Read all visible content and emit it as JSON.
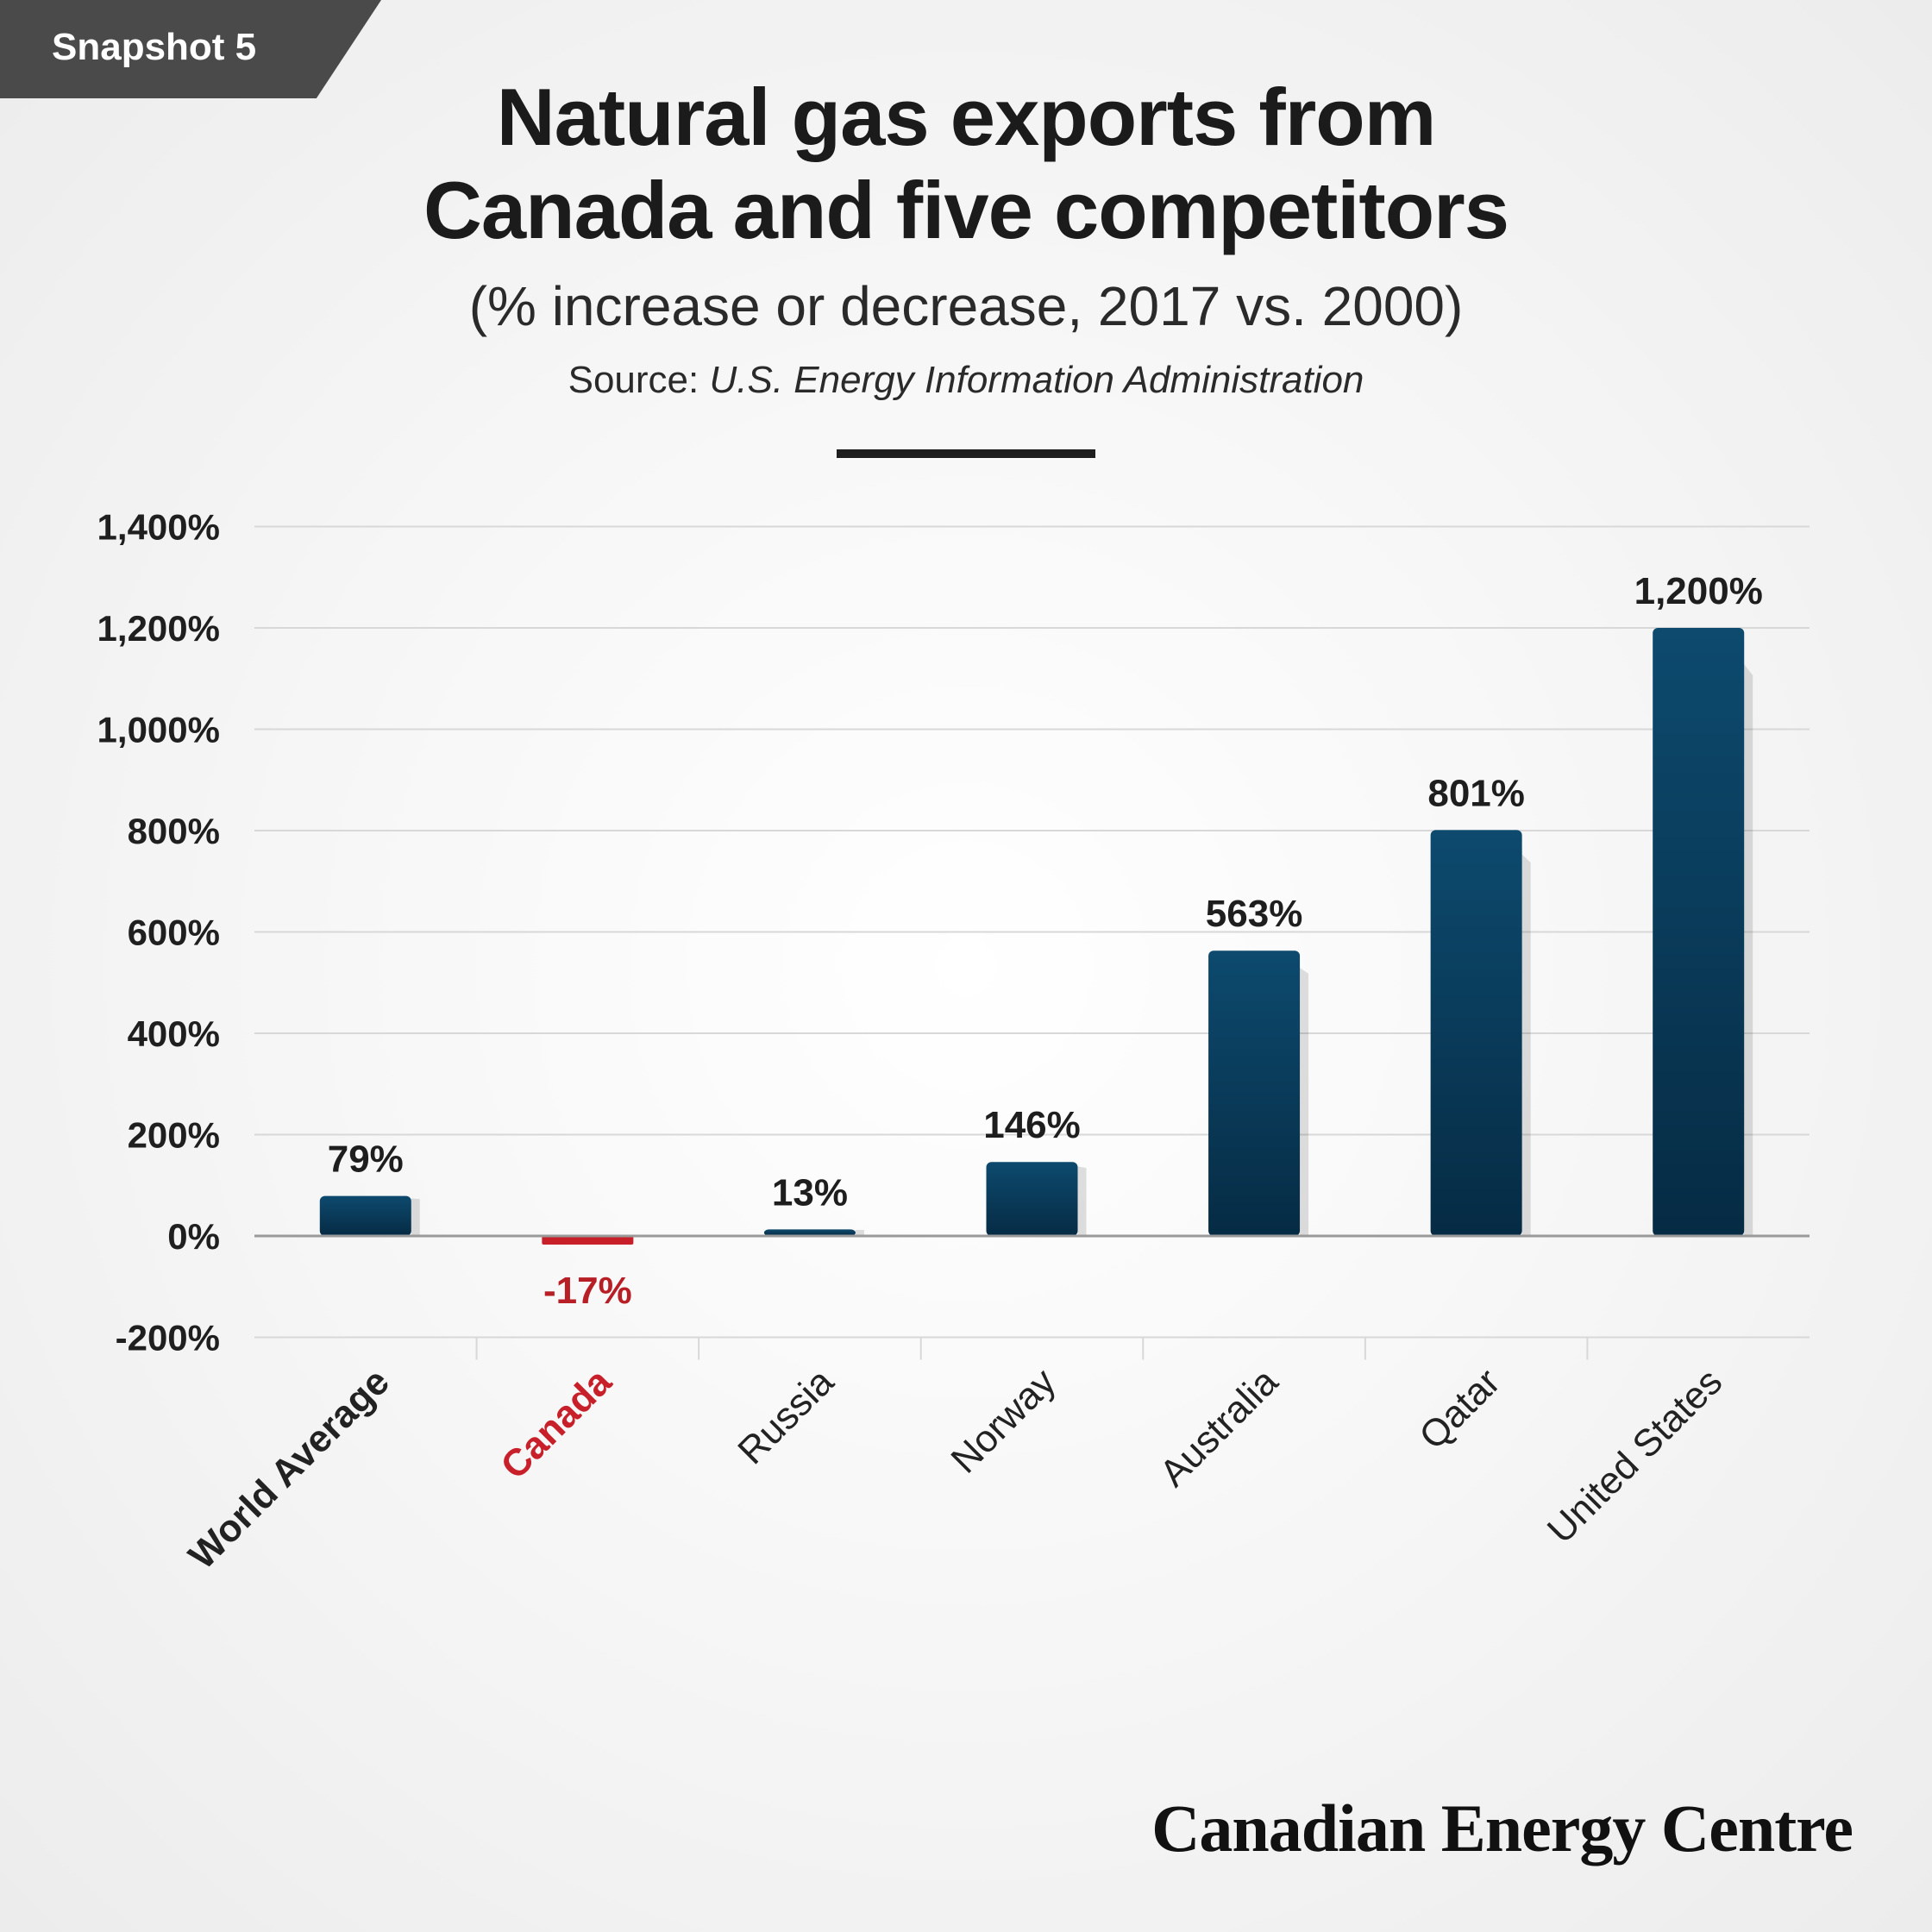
{
  "badge": "Snapshot 5",
  "title_lines": [
    "Natural gas exports from",
    "Canada and five competitors"
  ],
  "subtitle": "(% increase or decrease, 2017 vs. 2000)",
  "source": {
    "label": "Source:",
    "name": "U.S. Energy Information Administration"
  },
  "brand": "Canadian Energy Centre",
  "colors": {
    "bar": "#0d4a6e",
    "bar_dark": "#062b44",
    "highlight": "#c8202a",
    "gridline": "#d8d8d8",
    "zero_line": "#9a9a9a"
  },
  "chart_data": {
    "type": "bar",
    "categories": [
      "World Average",
      "Canada",
      "Russia",
      "Norway",
      "Australia",
      "Qatar",
      "United States"
    ],
    "values": [
      79,
      -17,
      13,
      146,
      563,
      801,
      1200
    ],
    "value_labels": [
      "79%",
      "-17%",
      "13%",
      "146%",
      "563%",
      "801%",
      "1,200%"
    ],
    "highlight_category": "Canada",
    "bold_categories": [
      "World Average",
      "Canada"
    ],
    "ylim": [
      -200,
      1400
    ],
    "yticks": [
      -200,
      0,
      200,
      400,
      600,
      800,
      1000,
      1200,
      1400
    ],
    "ytick_labels": [
      "-200%",
      "0%",
      "200%",
      "400%",
      "600%",
      "800%",
      "1,000%",
      "1,200%",
      "1,400%"
    ],
    "grid": true,
    "legend": "none"
  }
}
